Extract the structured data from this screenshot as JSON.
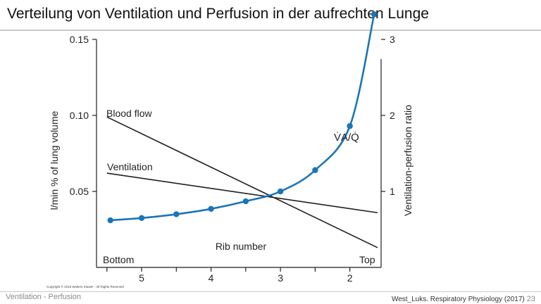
{
  "slide": {
    "title": "Verteilung von Ventilation und Perfusion in der aufrechten Lunge",
    "copyright": "Copyright © 2016 Wolters Kluwer · All Rights Reserved",
    "footer_left": "Ventilation - Perfusion",
    "footer_right": "West_Luks. Respiratory Physiology (2017)",
    "page_number": "23"
  },
  "colors": {
    "line": "#231f20",
    "ratio_curve": "#1a75b8",
    "axis": "#231f20"
  },
  "chart_data": {
    "type": "line",
    "x_axis": {
      "label": "Rib number",
      "ticks": [
        "5",
        "4",
        "3",
        "2"
      ],
      "tick_values": [
        5,
        4,
        3,
        2
      ],
      "range": [
        5.65,
        1.55
      ],
      "end_labels": {
        "left": "Bottom",
        "right": "Top"
      }
    },
    "y_left_axis": {
      "label": "l/min % of lung volume",
      "ticks": [
        "0.15",
        "0.10",
        "0.05"
      ],
      "tick_values": [
        0.15,
        0.1,
        0.05
      ],
      "range": [
        0.0,
        0.15
      ]
    },
    "y_right_axis": {
      "label": "Ventilation-perfusion ratio",
      "ticks": [
        "1",
        "2",
        "3"
      ],
      "tick_values": [
        1,
        2,
        3
      ],
      "range": [
        0.0,
        3.0
      ]
    },
    "series": [
      {
        "name": "Blood flow",
        "axis": "left",
        "style": "line",
        "x": [
          5.5,
          1.6
        ],
        "y": [
          0.099,
          0.013
        ]
      },
      {
        "name": "Ventilation",
        "axis": "left",
        "style": "line",
        "x": [
          5.5,
          1.6
        ],
        "y": [
          0.062,
          0.036
        ]
      },
      {
        "name": "V̇A/Q̇",
        "axis": "right",
        "style": "curve-markers",
        "x": [
          5.45,
          5.0,
          4.5,
          4.0,
          3.5,
          3.0,
          2.5,
          2.0,
          1.65
        ],
        "y": [
          0.62,
          0.65,
          0.7,
          0.77,
          0.87,
          1.0,
          1.28,
          1.86,
          3.33
        ]
      }
    ]
  }
}
